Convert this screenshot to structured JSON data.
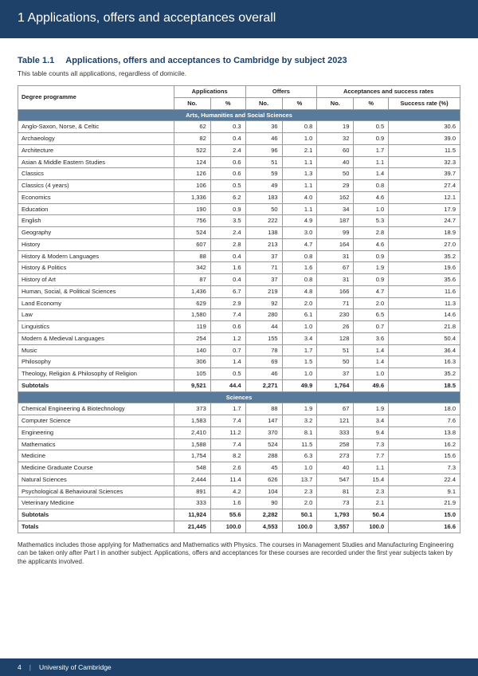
{
  "header": "1   Applications, offers and acceptances overall",
  "tableLabel": "Table 1.1",
  "tableTitle": "Applications, offers and acceptances to Cambridge by subject 2023",
  "subtitle": "This table counts all applications, regardless of domicile.",
  "colHeaders": {
    "prog": "Degree programme",
    "apps": "Applications",
    "offers": "Offers",
    "acc": "Acceptances and success rates",
    "no": "No.",
    "pct": "%",
    "sr": "Success rate (%)"
  },
  "sections": [
    {
      "title": "Arts, Humanities and Social Sciences",
      "rows": [
        [
          "Anglo-Saxon, Norse, & Celtic",
          "62",
          "0.3",
          "36",
          "0.8",
          "19",
          "0.5",
          "30.6"
        ],
        [
          "Archaeology",
          "82",
          "0.4",
          "46",
          "1.0",
          "32",
          "0.9",
          "39.0"
        ],
        [
          "Architecture",
          "522",
          "2.4",
          "96",
          "2.1",
          "60",
          "1.7",
          "11.5"
        ],
        [
          "Asian & Middle Eastern Studies",
          "124",
          "0.6",
          "51",
          "1.1",
          "40",
          "1.1",
          "32.3"
        ],
        [
          "Classics",
          "126",
          "0.6",
          "59",
          "1.3",
          "50",
          "1.4",
          "39.7"
        ],
        [
          "Classics (4 years)",
          "106",
          "0.5",
          "49",
          "1.1",
          "29",
          "0.8",
          "27.4"
        ],
        [
          "Economics",
          "1,336",
          "6.2",
          "183",
          "4.0",
          "162",
          "4.6",
          "12.1"
        ],
        [
          "Education",
          "190",
          "0.9",
          "50",
          "1.1",
          "34",
          "1.0",
          "17.9"
        ],
        [
          "English",
          "756",
          "3.5",
          "222",
          "4.9",
          "187",
          "5.3",
          "24.7"
        ],
        [
          "Geography",
          "524",
          "2.4",
          "138",
          "3.0",
          "99",
          "2.8",
          "18.9"
        ],
        [
          "History",
          "607",
          "2.8",
          "213",
          "4.7",
          "164",
          "4.6",
          "27.0"
        ],
        [
          "History & Modern Languages",
          "88",
          "0.4",
          "37",
          "0.8",
          "31",
          "0.9",
          "35.2"
        ],
        [
          "History & Politics",
          "342",
          "1.6",
          "71",
          "1.6",
          "67",
          "1.9",
          "19.6"
        ],
        [
          "History of Art",
          "87",
          "0.4",
          "37",
          "0.8",
          "31",
          "0.9",
          "35.6"
        ],
        [
          "Human, Social, & Political Sciences",
          "1,436",
          "6.7",
          "219",
          "4.8",
          "166",
          "4.7",
          "11.6"
        ],
        [
          "Land Economy",
          "629",
          "2.9",
          "92",
          "2.0",
          "71",
          "2.0",
          "11.3"
        ],
        [
          "Law",
          "1,580",
          "7.4",
          "280",
          "6.1",
          "230",
          "6.5",
          "14.6"
        ],
        [
          "Linguistics",
          "119",
          "0.6",
          "44",
          "1.0",
          "26",
          "0.7",
          "21.8"
        ],
        [
          "Modern & Medieval Languages",
          "254",
          "1.2",
          "155",
          "3.4",
          "128",
          "3.6",
          "50.4"
        ],
        [
          "Music",
          "140",
          "0.7",
          "78",
          "1.7",
          "51",
          "1.4",
          "36.4"
        ],
        [
          "Philosophy",
          "306",
          "1.4",
          "69",
          "1.5",
          "50",
          "1.4",
          "16.3"
        ],
        [
          "Theology, Religion & Philosophy of Religion",
          "105",
          "0.5",
          "46",
          "1.0",
          "37",
          "1.0",
          "35.2"
        ]
      ],
      "subtotal": [
        "Subtotals",
        "9,521",
        "44.4",
        "2,271",
        "49.9",
        "1,764",
        "49.6",
        "18.5"
      ]
    },
    {
      "title": "Sciences",
      "rows": [
        [
          "Chemical Engineering & Biotechnology",
          "373",
          "1.7",
          "88",
          "1.9",
          "67",
          "1.9",
          "18.0"
        ],
        [
          "Computer Science",
          "1,583",
          "7.4",
          "147",
          "3.2",
          "121",
          "3.4",
          "7.6"
        ],
        [
          "Engineering",
          "2,410",
          "11.2",
          "370",
          "8.1",
          "333",
          "9.4",
          "13.8"
        ],
        [
          "Mathematics",
          "1,588",
          "7.4",
          "524",
          "11.5",
          "258",
          "7.3",
          "16.2"
        ],
        [
          "Medicine",
          "1,754",
          "8.2",
          "288",
          "6.3",
          "273",
          "7.7",
          "15.6"
        ],
        [
          "Medicine Graduate Course",
          "548",
          "2.6",
          "45",
          "1.0",
          "40",
          "1.1",
          "7.3"
        ],
        [
          "Natural Sciences",
          "2,444",
          "11.4",
          "626",
          "13.7",
          "547",
          "15.4",
          "22.4"
        ],
        [
          "Psychological & Behavioural Sciences",
          "891",
          "4.2",
          "104",
          "2.3",
          "81",
          "2.3",
          "9.1"
        ],
        [
          "Veterinary Medicine",
          "333",
          "1.6",
          "90",
          "2.0",
          "73",
          "2.1",
          "21.9"
        ]
      ],
      "subtotal": [
        "Subtotals",
        "11,924",
        "55.6",
        "2,282",
        "50.1",
        "1,793",
        "50.4",
        "15.0"
      ]
    }
  ],
  "total": [
    "Totals",
    "21,445",
    "100.0",
    "4,553",
    "100.0",
    "3,557",
    "100.0",
    "16.6"
  ],
  "footnote": "Mathematics includes those applying for Mathematics and Mathematics with Physics. The courses in Management Studies and Manufacturing Engineering can be taken only after Part I in another subject. Applications, offers and acceptances for these courses are recorded under the first year subjects taken by the applicants involved.",
  "footer": {
    "page": "4",
    "org": "University of Cambridge"
  }
}
